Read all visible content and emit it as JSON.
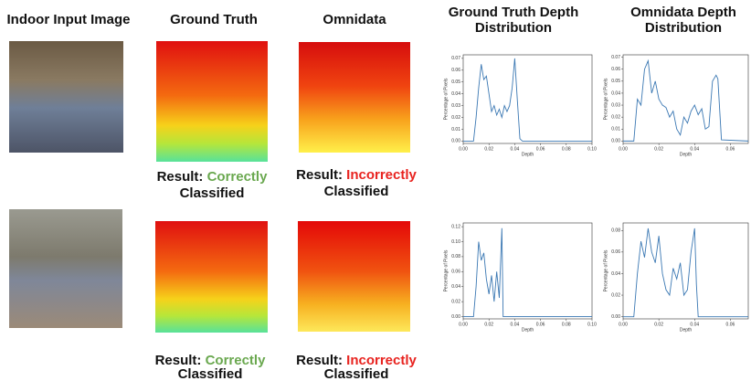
{
  "headers": [
    "Indoor Input Image",
    "Ground Truth",
    "Omnidata",
    "Ground Truth Depth",
    "Distribution",
    "Omnidata Depth",
    "Distribution"
  ],
  "rows": [
    {
      "ground_truth": {
        "prefix": "Result:",
        "verdict": "Correctly",
        "suffix": "Classified"
      },
      "omnidata": {
        "prefix": "Result:",
        "verdict": "Incorrectly",
        "suffix": "Classified"
      }
    },
    {
      "ground_truth": {
        "prefix": "Result:",
        "verdict": "Correctly",
        "suffix": "Classified"
      },
      "omnidata": {
        "prefix": "Result:",
        "verdict": "Incorrectly",
        "suffix": "Classified"
      }
    }
  ],
  "chart_data": [
    {
      "type": "line",
      "xlabel": "Depth",
      "ylabel": "Percentage of Pixels",
      "x": [
        0,
        0.008,
        0.01,
        0.012,
        0.014,
        0.016,
        0.018,
        0.02,
        0.022,
        0.024,
        0.026,
        0.028,
        0.03,
        0.032,
        0.034,
        0.036,
        0.038,
        0.04,
        0.042,
        0.044,
        0.046,
        0.06,
        0.08,
        0.1
      ],
      "series": [
        {
          "color": "#3b78b3",
          "values": [
            0,
            0,
            0.02,
            0.045,
            0.065,
            0.052,
            0.055,
            0.04,
            0.025,
            0.03,
            0.022,
            0.027,
            0.02,
            0.03,
            0.025,
            0.03,
            0.045,
            0.07,
            0.035,
            0.002,
            0,
            0,
            0,
            0
          ]
        }
      ],
      "xlim": [
        0,
        0.1
      ],
      "xticks": [
        {
          "value": 0,
          "label": "0.00"
        },
        {
          "value": 0.02,
          "label": "0.02"
        },
        {
          "value": 0.04,
          "label": "0.04"
        },
        {
          "value": 0.06,
          "label": "0.06"
        },
        {
          "value": 0.08,
          "label": "0.08"
        },
        {
          "value": 0.1,
          "label": "0.10"
        }
      ],
      "ylim": [
        -0.002,
        0.073
      ],
      "yticks": [
        {
          "value": 0,
          "label": "0.00"
        },
        {
          "value": 0.01,
          "label": "0.01"
        },
        {
          "value": 0.02,
          "label": "0.02"
        },
        {
          "value": 0.03,
          "label": "0.03"
        },
        {
          "value": 0.04,
          "label": "0.04"
        },
        {
          "value": 0.05,
          "label": "0.05"
        },
        {
          "value": 0.06,
          "label": "0.06"
        },
        {
          "value": 0.07,
          "label": "0.07"
        }
      ]
    },
    {
      "type": "line",
      "xlabel": "Depth",
      "ylabel": "Percentage of Pixels",
      "x": [
        0,
        0.006,
        0.008,
        0.01,
        0.012,
        0.014,
        0.016,
        0.018,
        0.02,
        0.022,
        0.024,
        0.026,
        0.028,
        0.03,
        0.032,
        0.034,
        0.036,
        0.038,
        0.04,
        0.042,
        0.044,
        0.046,
        0.048,
        0.05,
        0.052,
        0.053,
        0.055,
        0.07
      ],
      "series": [
        {
          "color": "#3b78b3",
          "values": [
            0,
            0,
            0.035,
            0.03,
            0.06,
            0.067,
            0.04,
            0.05,
            0.035,
            0.03,
            0.028,
            0.02,
            0.025,
            0.01,
            0.005,
            0.02,
            0.015,
            0.025,
            0.03,
            0.022,
            0.027,
            0.01,
            0.012,
            0.05,
            0.055,
            0.052,
            0.001,
            0
          ]
        }
      ],
      "xlim": [
        0,
        0.07
      ],
      "xticks": [
        {
          "value": 0,
          "label": "0.00"
        },
        {
          "value": 0.02,
          "label": "0.02"
        },
        {
          "value": 0.04,
          "label": "0.04"
        },
        {
          "value": 0.06,
          "label": "0.06"
        }
      ],
      "ylim": [
        -0.002,
        0.072
      ],
      "yticks": [
        {
          "value": 0,
          "label": "0.00"
        },
        {
          "value": 0.01,
          "label": "0.01"
        },
        {
          "value": 0.02,
          "label": "0.02"
        },
        {
          "value": 0.03,
          "label": "0.03"
        },
        {
          "value": 0.04,
          "label": "0.04"
        },
        {
          "value": 0.05,
          "label": "0.05"
        },
        {
          "value": 0.06,
          "label": "0.06"
        },
        {
          "value": 0.07,
          "label": "0.07"
        }
      ]
    },
    {
      "type": "line",
      "xlabel": "Depth",
      "ylabel": "Percentage of Pixels",
      "x": [
        0,
        0.008,
        0.01,
        0.012,
        0.014,
        0.016,
        0.018,
        0.02,
        0.022,
        0.024,
        0.026,
        0.028,
        0.03,
        0.031,
        0.04,
        0.06,
        0.08,
        0.1
      ],
      "series": [
        {
          "color": "#3b78b3",
          "values": [
            0,
            0,
            0.04,
            0.1,
            0.075,
            0.085,
            0.05,
            0.03,
            0.055,
            0.02,
            0.06,
            0.025,
            0.118,
            0,
            0,
            0,
            0,
            0
          ]
        }
      ],
      "xlim": [
        0,
        0.1
      ],
      "xticks": [
        {
          "value": 0,
          "label": "0.00"
        },
        {
          "value": 0.02,
          "label": "0.02"
        },
        {
          "value": 0.04,
          "label": "0.04"
        },
        {
          "value": 0.06,
          "label": "0.06"
        },
        {
          "value": 0.08,
          "label": "0.08"
        },
        {
          "value": 0.1,
          "label": "0.10"
        }
      ],
      "ylim": [
        -0.003,
        0.125
      ],
      "yticks": [
        {
          "value": 0,
          "label": "0.00"
        },
        {
          "value": 0.02,
          "label": "0.02"
        },
        {
          "value": 0.04,
          "label": "0.04"
        },
        {
          "value": 0.06,
          "label": "0.06"
        },
        {
          "value": 0.08,
          "label": "0.08"
        },
        {
          "value": 0.1,
          "label": "0.10"
        },
        {
          "value": 0.12,
          "label": "0.12"
        }
      ]
    },
    {
      "type": "line",
      "xlabel": "Depth",
      "ylabel": "Percentage of Pixels",
      "x": [
        0,
        0.006,
        0.008,
        0.01,
        0.012,
        0.014,
        0.016,
        0.018,
        0.02,
        0.022,
        0.024,
        0.026,
        0.028,
        0.03,
        0.032,
        0.034,
        0.036,
        0.038,
        0.04,
        0.041,
        0.042,
        0.07
      ],
      "series": [
        {
          "color": "#3b78b3",
          "values": [
            0,
            0,
            0.04,
            0.07,
            0.055,
            0.082,
            0.06,
            0.05,
            0.075,
            0.04,
            0.025,
            0.02,
            0.045,
            0.035,
            0.05,
            0.02,
            0.025,
            0.06,
            0.082,
            0.03,
            0,
            0
          ]
        }
      ],
      "xlim": [
        0,
        0.07
      ],
      "xticks": [
        {
          "value": 0,
          "label": "0.00"
        },
        {
          "value": 0.02,
          "label": "0.02"
        },
        {
          "value": 0.04,
          "label": "0.04"
        },
        {
          "value": 0.06,
          "label": "0.06"
        }
      ],
      "ylim": [
        -0.002,
        0.087
      ],
      "yticks": [
        {
          "value": 0,
          "label": "0.00"
        },
        {
          "value": 0.02,
          "label": "0.02"
        },
        {
          "value": 0.04,
          "label": "0.04"
        },
        {
          "value": 0.06,
          "label": "0.06"
        },
        {
          "value": 0.08,
          "label": "0.08"
        }
      ]
    }
  ]
}
